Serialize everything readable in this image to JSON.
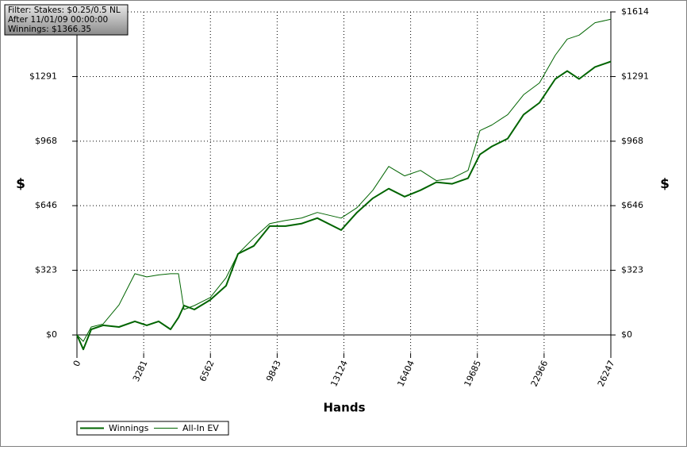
{
  "chart_data": {
    "type": "line",
    "info": [
      "Filter: Stakes: $0.25/0.5 NL",
      "After 11/01/09 00:00:00",
      "Winnings: $1366.35"
    ],
    "xlabel": "Hands",
    "ylabel": "$",
    "y2label": "$",
    "x": [
      0,
      312,
      702,
      1287,
      2067,
      2847,
      3432,
      4017,
      4602,
      4992,
      5265,
      5772,
      6552,
      7332,
      7917,
      8697,
      9477,
      10257,
      11037,
      11817,
      12987,
      13767,
      14547,
      15327,
      16107,
      16887,
      17667,
      18447,
      19227,
      19812,
      20397,
      21177,
      21957,
      22737,
      23517,
      24102,
      24687,
      25467,
      26247
    ],
    "series": [
      {
        "name": "Winnings",
        "color": "#006400",
        "width": 2,
        "values": [
          0,
          -72,
          28,
          48,
          40,
          68,
          48,
          68,
          28,
          87,
          147,
          127,
          175,
          246,
          405,
          445,
          544,
          544,
          556,
          584,
          524,
          612,
          683,
          731,
          691,
          723,
          763,
          755,
          783,
          902,
          942,
          981,
          1101,
          1160,
          1279,
          1319,
          1279,
          1339,
          1366
        ]
      },
      {
        "name": "All-In EV",
        "color": "#006400",
        "width": 1,
        "values": [
          0,
          -32,
          40,
          55,
          150,
          306,
          290,
          300,
          306,
          306,
          127,
          147,
          187,
          286,
          405,
          485,
          556,
          572,
          584,
          612,
          584,
          636,
          723,
          842,
          795,
          822,
          771,
          783,
          822,
          1021,
          1049,
          1101,
          1200,
          1259,
          1398,
          1478,
          1498,
          1560,
          1577
        ]
      }
    ],
    "xlim": [
      0,
      26247
    ],
    "xticks": [
      0,
      3281,
      6562,
      9843,
      13124,
      16404,
      19685,
      22966,
      26247
    ],
    "ylim": [
      -91,
      1614
    ],
    "yticks": [
      {
        "value": 0,
        "label": "$0"
      },
      {
        "value": 323,
        "label": "$323"
      },
      {
        "value": 646,
        "label": "$646"
      },
      {
        "value": 968,
        "label": "$968"
      },
      {
        "value": 1291,
        "label": "$1291"
      },
      {
        "value": 1614,
        "label": "$1614"
      }
    ],
    "grid": true
  }
}
